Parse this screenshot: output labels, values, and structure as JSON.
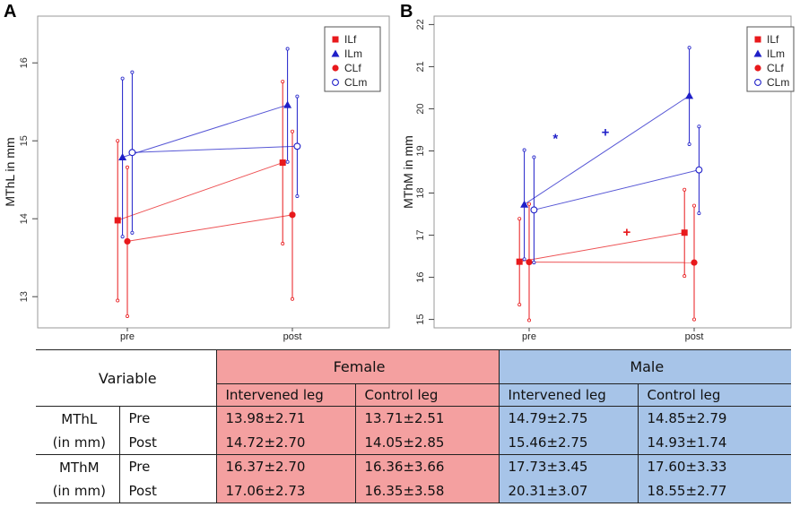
{
  "panels": {
    "a_label": "A",
    "b_label": "B"
  },
  "colors": {
    "female": "#e8191c",
    "male": "#1f1fc8",
    "female_light": "#f08080",
    "male_light": "#8080e0"
  },
  "chart_data": [
    {
      "type": "scatter",
      "panel": "A",
      "title": "",
      "xlabel": "",
      "ylabel": "MThL in mm",
      "categories": [
        "pre",
        "post"
      ],
      "ylim": [
        12.6,
        16.6
      ],
      "yticks": [
        "13",
        "14",
        "15",
        "16"
      ],
      "grid": false,
      "legend": {
        "position": "top-right",
        "entries": [
          "ILf",
          "ILm",
          "CLf",
          "CLm"
        ]
      },
      "series": [
        {
          "name": "ILf",
          "color": "#e8191c",
          "marker": "square",
          "offset": -0.09,
          "values": [
            13.98,
            14.72
          ],
          "lower": [
            12.95,
            13.68
          ],
          "upper": [
            15.0,
            15.76
          ]
        },
        {
          "name": "ILm",
          "color": "#1f1fc8",
          "marker": "triangle",
          "offset": -0.045,
          "values": [
            14.79,
            15.46
          ],
          "lower": [
            13.77,
            14.73
          ],
          "upper": [
            15.8,
            16.18
          ]
        },
        {
          "name": "CLf",
          "color": "#e8191c",
          "marker": "dot",
          "offset": 0.0,
          "values": [
            13.71,
            14.05
          ],
          "lower": [
            12.75,
            12.97
          ],
          "upper": [
            14.66,
            15.12
          ]
        },
        {
          "name": "CLm",
          "color": "#1f1fc8",
          "marker": "circle",
          "offset": 0.045,
          "values": [
            14.85,
            14.93
          ],
          "lower": [
            13.82,
            14.29
          ],
          "upper": [
            15.88,
            15.57
          ]
        }
      ],
      "annotations": []
    },
    {
      "type": "scatter",
      "panel": "B",
      "title": "",
      "xlabel": "",
      "ylabel": "MThM in mm",
      "categories": [
        "pre",
        "post"
      ],
      "ylim": [
        14.8,
        22.2
      ],
      "yticks": [
        "15",
        "16",
        "17",
        "18",
        "19",
        "20",
        "21",
        "22"
      ],
      "grid": false,
      "legend": {
        "position": "top-right",
        "entries": [
          "ILf",
          "ILm",
          "CLf",
          "CLm"
        ]
      },
      "series": [
        {
          "name": "ILf",
          "color": "#e8191c",
          "marker": "square",
          "offset": -0.09,
          "values": [
            16.37,
            17.06
          ],
          "lower": [
            15.35,
            16.03
          ],
          "upper": [
            17.39,
            18.08
          ]
        },
        {
          "name": "ILm",
          "color": "#1f1fc8",
          "marker": "triangle",
          "offset": -0.045,
          "values": [
            17.73,
            20.31
          ],
          "lower": [
            16.43,
            19.16
          ],
          "upper": [
            19.02,
            21.45
          ]
        },
        {
          "name": "CLf",
          "color": "#e8191c",
          "marker": "dot",
          "offset": 0.0,
          "values": [
            16.36,
            16.35
          ],
          "lower": [
            14.98,
            15.0
          ],
          "upper": [
            17.74,
            17.7
          ]
        },
        {
          "name": "CLm",
          "color": "#1f1fc8",
          "marker": "circle",
          "offset": 0.045,
          "values": [
            17.6,
            18.55
          ],
          "lower": [
            16.35,
            17.52
          ],
          "upper": [
            18.85,
            19.58
          ]
        }
      ],
      "annotations": [
        {
          "text": "*",
          "color": "#1f1fc8",
          "x": 0.34,
          "y": 19.3
        },
        {
          "text": "+",
          "color": "#1f1fc8",
          "x": 0.48,
          "y": 19.45
        },
        {
          "text": "+",
          "color": "#e8191c",
          "x": 0.54,
          "y": 17.07
        }
      ]
    }
  ],
  "table": {
    "variable_header": "Variable",
    "female_header": "Female",
    "male_header": "Male",
    "intervened_leg": "Intervened leg",
    "control_leg": "Control leg",
    "mthl_name": "MThL",
    "mthl_unit": "(in mm)",
    "mthm_name": "MThM",
    "mthm_unit": "(in mm)",
    "pre": "Pre",
    "post": "Post",
    "mthl_pre": [
      "13.98±2.71",
      "13.71±2.51",
      "14.79±2.75",
      "14.85±2.79"
    ],
    "mthl_post": [
      "14.72±2.70",
      "14.05±2.85",
      "15.46±2.75",
      "14.93±1.74"
    ],
    "mthm_pre": [
      "16.37±2.70",
      "16.36±3.66",
      "17.73±3.45",
      "17.60±3.33"
    ],
    "mthm_post": [
      "17.06±2.73",
      "16.35±3.58",
      "20.31±3.07",
      "18.55±2.77"
    ]
  }
}
